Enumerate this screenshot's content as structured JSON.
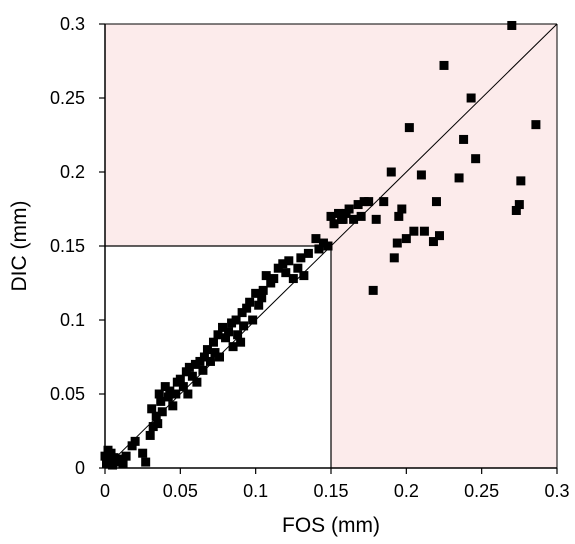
{
  "colors": {
    "region_fill": "#fcebeb",
    "marker": "#000000",
    "axis": "#000000",
    "line": "#000000"
  },
  "chart_data": {
    "type": "scatter",
    "title": "",
    "xlabel": "FOS (mm)",
    "ylabel": "DIC (mm)",
    "xlim": [
      0,
      0.3
    ],
    "ylim": [
      0,
      0.3
    ],
    "x_ticks": [
      0,
      0.05,
      0.1,
      0.15,
      0.2,
      0.25,
      0.3
    ],
    "x_tick_labels": [
      "0",
      "0.05",
      "0.1",
      "0.15",
      "0.2",
      "0.25",
      "0.3"
    ],
    "y_ticks": [
      0,
      0.05,
      0.1,
      0.15,
      0.2,
      0.25,
      0.3
    ],
    "y_tick_labels": [
      "0",
      "0.05",
      "0.1",
      "0.15",
      "0.2",
      "0.25",
      "0.3"
    ],
    "grid": false,
    "legend": "none",
    "reference_line": {
      "from": [
        0,
        0
      ],
      "to": [
        0.3,
        0.3
      ]
    },
    "threshold": 0.15,
    "shaded_region": "x > 0.15 or y > 0.15",
    "series": [
      {
        "marker": "square",
        "x": [
          0.0,
          0.001,
          0.002,
          0.003,
          0.004,
          0.005,
          0.006,
          0.008,
          0.01,
          0.012,
          0.014,
          0.018,
          0.02,
          0.025,
          0.027,
          0.03,
          0.031,
          0.032,
          0.034,
          0.035,
          0.036,
          0.037,
          0.038,
          0.04,
          0.042,
          0.043,
          0.045,
          0.047,
          0.048,
          0.05,
          0.052,
          0.054,
          0.055,
          0.056,
          0.058,
          0.06,
          0.061,
          0.063,
          0.065,
          0.066,
          0.068,
          0.07,
          0.072,
          0.073,
          0.075,
          0.076,
          0.078,
          0.08,
          0.082,
          0.084,
          0.085,
          0.087,
          0.088,
          0.09,
          0.091,
          0.092,
          0.094,
          0.096,
          0.098,
          0.1,
          0.102,
          0.104,
          0.105,
          0.107,
          0.11,
          0.112,
          0.115,
          0.118,
          0.12,
          0.122,
          0.125,
          0.128,
          0.13,
          0.132,
          0.135,
          0.14,
          0.142,
          0.145,
          0.148,
          0.15,
          0.152,
          0.155,
          0.157,
          0.158,
          0.16,
          0.162,
          0.165,
          0.168,
          0.17,
          0.172,
          0.175,
          0.178,
          0.18,
          0.185,
          0.19,
          0.192,
          0.194,
          0.195,
          0.197,
          0.2,
          0.202,
          0.205,
          0.21,
          0.212,
          0.218,
          0.22,
          0.222,
          0.225,
          0.235,
          0.238,
          0.243,
          0.246,
          0.27,
          0.273,
          0.275,
          0.276,
          0.286
        ],
        "y": [
          0.008,
          0.003,
          0.012,
          0.005,
          0.01,
          0.002,
          0.007,
          0.004,
          0.006,
          0.003,
          0.008,
          0.015,
          0.018,
          0.01,
          0.004,
          0.022,
          0.04,
          0.028,
          0.035,
          0.03,
          0.05,
          0.045,
          0.038,
          0.055,
          0.048,
          0.052,
          0.042,
          0.05,
          0.058,
          0.06,
          0.055,
          0.065,
          0.05,
          0.068,
          0.062,
          0.07,
          0.058,
          0.072,
          0.066,
          0.075,
          0.08,
          0.072,
          0.085,
          0.078,
          0.09,
          0.075,
          0.095,
          0.088,
          0.092,
          0.098,
          0.082,
          0.1,
          0.09,
          0.085,
          0.105,
          0.096,
          0.108,
          0.112,
          0.1,
          0.118,
          0.11,
          0.115,
          0.12,
          0.13,
          0.125,
          0.128,
          0.135,
          0.138,
          0.132,
          0.14,
          0.128,
          0.135,
          0.142,
          0.13,
          0.145,
          0.155,
          0.148,
          0.152,
          0.15,
          0.17,
          0.165,
          0.172,
          0.168,
          0.168,
          0.172,
          0.175,
          0.168,
          0.178,
          0.17,
          0.18,
          0.18,
          0.12,
          0.168,
          0.18,
          0.2,
          0.142,
          0.152,
          0.17,
          0.175,
          0.155,
          0.23,
          0.16,
          0.198,
          0.16,
          0.153,
          0.18,
          0.157,
          0.272,
          0.196,
          0.222,
          0.25,
          0.209,
          0.299,
          0.174,
          0.178,
          0.194,
          0.232
        ]
      }
    ]
  }
}
